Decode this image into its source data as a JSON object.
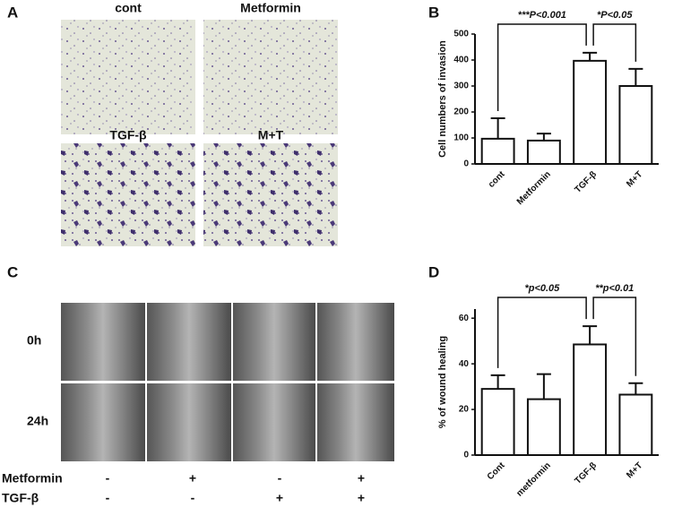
{
  "panel_labels": [
    "A",
    "B",
    "C",
    "D"
  ],
  "invasion_images": [
    "cont",
    "Metformin",
    "TGF-β",
    "M+T"
  ],
  "wound": {
    "rows": [
      "0h",
      "24h"
    ],
    "conditions": [
      {
        "label": "Metformin",
        "marks": [
          "-",
          "+",
          "-",
          "+"
        ]
      },
      {
        "label": "TGF-β",
        "marks": [
          "-",
          "-",
          "+",
          "+"
        ]
      }
    ]
  },
  "chart_data": [
    {
      "type": "bar",
      "y_label": "Cell numbers of invasion",
      "categories": [
        "cont",
        "Metformin",
        "TGF-β",
        "M+T"
      ],
      "values": [
        97,
        90,
        397,
        300
      ],
      "errors": [
        79,
        27,
        31,
        66
      ],
      "color": "#ffffff",
      "ylim": [
        0,
        500
      ],
      "yticks": [
        0,
        100,
        200,
        300,
        400,
        500
      ],
      "annotations": [
        "***P<0.001",
        "*P<0.05"
      ]
    },
    {
      "type": "bar",
      "y_label": "% of wound healing",
      "categories": [
        "Cont",
        "metformin",
        "TGF-β",
        "M+T"
      ],
      "values": [
        29,
        24.5,
        48.5,
        26.5
      ],
      "errors": [
        6,
        11,
        8,
        5
      ],
      "color": "#ffffff",
      "ylim": [
        0,
        64
      ],
      "yticks": [
        0,
        20,
        40,
        60
      ],
      "annotations": [
        "*p<0.05",
        "**p<0.01"
      ]
    }
  ]
}
